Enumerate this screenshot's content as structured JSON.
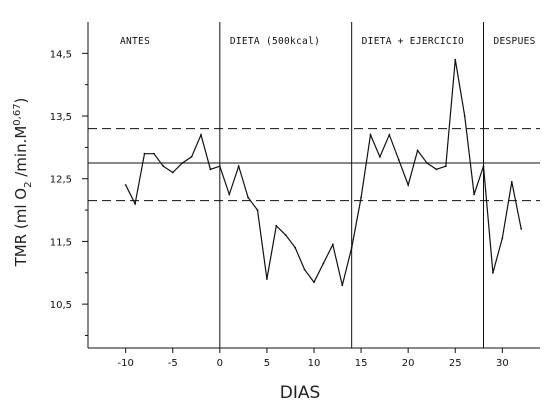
{
  "chart_data": {
    "type": "line",
    "title": "",
    "xlabel": "DIAS",
    "ylabel_parts": {
      "prefix": "TMR  (ml  O",
      "sub": "2",
      "middle": " /min.M",
      "sup": "0,67",
      "suffix": ")"
    },
    "xlim": [
      -14,
      34
    ],
    "ylim": [
      9.8,
      15.0
    ],
    "x_ticks": [
      -10,
      -5,
      0,
      5,
      10,
      15,
      20,
      25,
      30
    ],
    "x_tick_labels": [
      "-10",
      "-5",
      "0",
      "5",
      "10",
      "15",
      "20",
      "25",
      "30"
    ],
    "y_ticks": [
      10.5,
      11.5,
      12.5,
      13.5,
      14.5
    ],
    "y_tick_labels": [
      "10,5",
      "11,5",
      "12,5",
      "13,5",
      "14,5"
    ],
    "phases": [
      {
        "label": "ANTES",
        "start": -14,
        "end": 0
      },
      {
        "label": "DIETA (500kcal)",
        "start": 0,
        "end": 14
      },
      {
        "label": "DIETA + EJERCICIO",
        "start": 14,
        "end": 28
      },
      {
        "label": "DESPUES",
        "start": 28,
        "end": 34
      }
    ],
    "reference_lines": [
      {
        "y": 12.75,
        "style": "solid"
      },
      {
        "y": 13.3,
        "style": "dashed"
      },
      {
        "y": 12.15,
        "style": "dashed"
      }
    ],
    "series": [
      {
        "x": [
          -10,
          -9,
          -8,
          -7,
          -6,
          -5,
          -4,
          -3,
          -2,
          -1,
          0,
          1,
          2,
          3,
          4,
          5,
          6,
          7,
          8,
          9,
          10,
          11,
          12,
          13,
          14,
          15,
          16,
          17,
          18,
          19,
          20,
          21,
          22,
          23,
          24,
          25,
          26,
          27,
          28,
          29,
          30,
          31,
          32
        ],
        "values": [
          12.4,
          12.1,
          12.9,
          12.9,
          12.7,
          12.6,
          12.75,
          12.85,
          13.2,
          12.65,
          12.7,
          12.25,
          12.7,
          12.2,
          12.0,
          10.9,
          11.75,
          11.6,
          11.4,
          11.05,
          10.85,
          11.15,
          11.45,
          10.8,
          11.4,
          12.2,
          13.2,
          12.85,
          13.2,
          12.8,
          12.4,
          12.95,
          12.75,
          12.65,
          12.7,
          14.4,
          13.5,
          12.25,
          12.7,
          11.0,
          11.55,
          12.45,
          11.7
        ]
      }
    ],
    "grid": false,
    "legend": "none",
    "colors": {
      "line": "#111111",
      "background": "#ffffff"
    }
  }
}
